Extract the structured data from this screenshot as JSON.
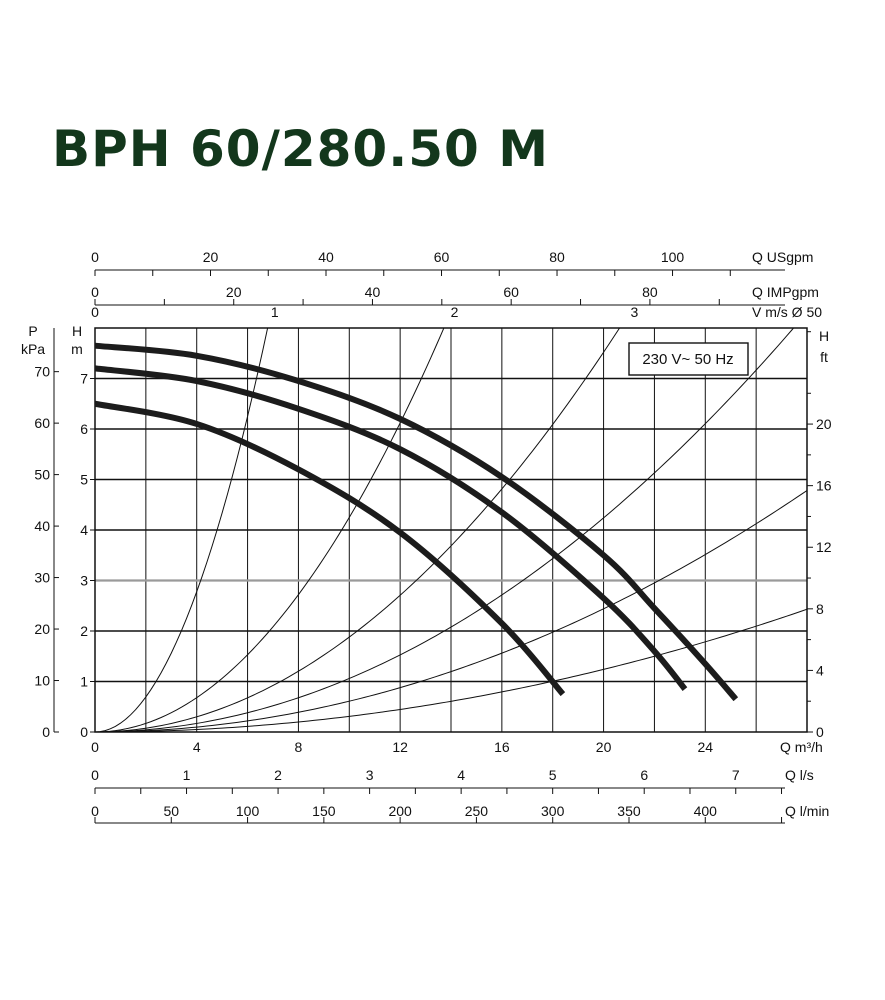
{
  "title": "BPH 60/280.50 M",
  "chart_data": {
    "type": "line",
    "title": "BPH 60/280.50 M",
    "annotation": "230 V~ 50 Hz",
    "x_main": {
      "label": "Q m³/h",
      "range": [
        0,
        28
      ],
      "ticks": [
        0,
        4,
        8,
        12,
        16,
        20,
        24
      ]
    },
    "y_left_m": {
      "label_top": "H",
      "label_bottom": "m",
      "range": [
        0,
        8
      ],
      "ticks": [
        0,
        1,
        2,
        3,
        4,
        5,
        6,
        7
      ]
    },
    "y_left_kpa": {
      "label_top": "P",
      "label_bottom": "kPa",
      "ticks": [
        0,
        10,
        20,
        30,
        40,
        50,
        60,
        70
      ],
      "per_m": 9.81
    },
    "y_right_ft": {
      "label_top": "H",
      "label_bottom": "ft",
      "ticks": [
        0,
        4,
        8,
        12,
        16,
        20
      ],
      "per_m": 3.28
    },
    "x_top_usgpm": {
      "label": "Q USgpm",
      "ticks": [
        0,
        20,
        40,
        60,
        80,
        100
      ],
      "per_m3h": 4.403
    },
    "x_top_impgpm": {
      "label": "Q IMPgpm",
      "ticks": [
        0,
        20,
        40,
        60,
        80
      ],
      "per_m3h": 3.666
    },
    "x_top_velocity": {
      "label": "V m/s Ø 50",
      "ticks": [
        0,
        1,
        2,
        3
      ],
      "per_ms_m3h": 7.07
    },
    "x_bottom_ls": {
      "label": "Q l/s",
      "ticks": [
        0,
        1,
        2,
        3,
        4,
        5,
        6,
        7
      ],
      "per_m3h": 0.2778
    },
    "x_bottom_lmin": {
      "label": "Q l/min",
      "ticks": [
        0,
        50,
        100,
        150,
        200,
        250,
        300,
        350,
        400
      ],
      "per_m3h": 16.667
    },
    "series": [
      {
        "x": [
          0,
          4,
          8,
          12,
          16,
          20,
          22,
          24,
          25.2
        ],
        "y": [
          7.65,
          7.45,
          6.95,
          6.2,
          5.05,
          3.5,
          2.45,
          1.35,
          0.65
        ]
      },
      {
        "x": [
          0,
          4,
          8,
          12,
          16,
          20,
          22,
          23.2
        ],
        "y": [
          7.2,
          6.95,
          6.4,
          5.6,
          4.35,
          2.65,
          1.6,
          0.85
        ]
      },
      {
        "x": [
          0,
          4,
          8,
          12,
          16,
          18.4
        ],
        "y": [
          6.5,
          6.1,
          5.2,
          3.95,
          2.15,
          0.75
        ]
      }
    ],
    "system_curves_k": [
      0.1736,
      0.0425,
      0.0188,
      0.0106,
      0.0061,
      0.0031
    ],
    "grid": true
  }
}
